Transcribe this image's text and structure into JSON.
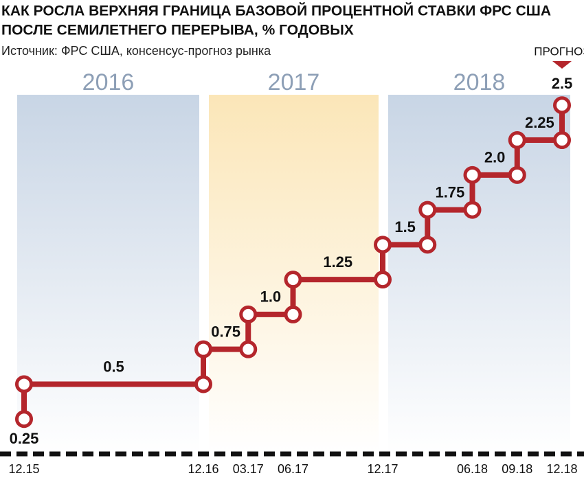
{
  "chart_data": {
    "type": "step",
    "title": [
      "КАК РОСЛА ВЕРХНЯЯ ГРАНИЦА БАЗОВОЙ ПРОЦЕНТНОЙ СТАВКИ ФРС США",
      "ПОСЛЕ СЕМИЛЕТНЕГО ПЕРЕРЫВА, % ГОДОВЫХ"
    ],
    "subtitle": "Источник: ФРС США, консенсус-прогноз рынка",
    "x": [
      "2015-12",
      "2015-12",
      "2016-12",
      "2017-03",
      "2017-06",
      "2017-12",
      "2018-03",
      "2018-06",
      "2018-09",
      "2018-12"
    ],
    "values": [
      0.25,
      0.5,
      0.75,
      1.0,
      1.25,
      1.5,
      1.75,
      2.0,
      2.25,
      2.5
    ],
    "value_labels": [
      "0.25",
      "0.5",
      "0.75",
      "1.0",
      "1.25",
      "1.5",
      "1.75",
      "2.0",
      "2.25",
      "2.5"
    ],
    "color": "#b4262c",
    "xlim": [
      "2015-12",
      "2018-12"
    ],
    "xticks": [
      {
        "value": "2015-12",
        "label": "12.15"
      },
      {
        "value": "2016-12",
        "label": "12.16"
      },
      {
        "value": "2017-03",
        "label": "03.17"
      },
      {
        "value": "2017-06",
        "label": "06.17"
      },
      {
        "value": "2017-12",
        "label": "12.17"
      },
      {
        "value": "2018-06",
        "label": "06.18"
      },
      {
        "value": "2018-09",
        "label": "09.18"
      },
      {
        "value": "2018-12",
        "label": "12.18"
      }
    ],
    "ylim": [
      0,
      2.75
    ],
    "year_bands": [
      {
        "label": "2016",
        "from": "2015-12",
        "to": "2016-12",
        "color": "#c8d5e5"
      },
      {
        "label": "2017",
        "from": "2016-12",
        "to": "2017-12",
        "color": "#fbe6b8"
      },
      {
        "label": "2018",
        "from": "2017-12",
        "to": "2018-12",
        "color": "#c8d5e5"
      }
    ],
    "forecast_label": "ПРОГНОЗ"
  }
}
